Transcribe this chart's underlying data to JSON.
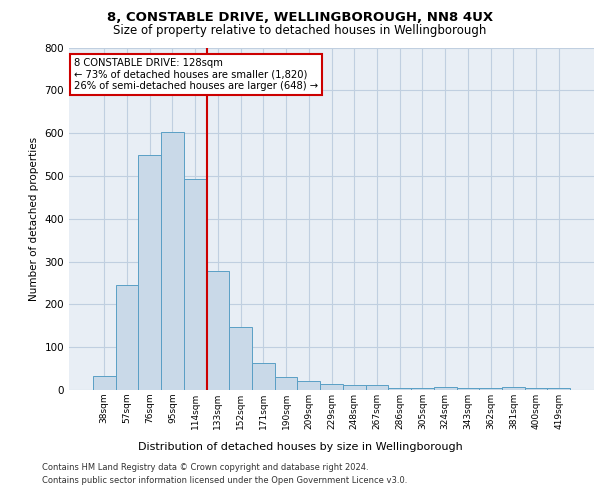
{
  "title1": "8, CONSTABLE DRIVE, WELLINGBOROUGH, NN8 4UX",
  "title2": "Size of property relative to detached houses in Wellingborough",
  "xlabel": "Distribution of detached houses by size in Wellingborough",
  "ylabel": "Number of detached properties",
  "bar_labels": [
    "38sqm",
    "57sqm",
    "76sqm",
    "95sqm",
    "114sqm",
    "133sqm",
    "152sqm",
    "171sqm",
    "190sqm",
    "209sqm",
    "229sqm",
    "248sqm",
    "267sqm",
    "286sqm",
    "305sqm",
    "324sqm",
    "343sqm",
    "362sqm",
    "381sqm",
    "400sqm",
    "419sqm"
  ],
  "bar_values": [
    32,
    245,
    548,
    603,
    493,
    278,
    146,
    62,
    30,
    20,
    15,
    12,
    12,
    5,
    5,
    8,
    5,
    5,
    8,
    5,
    5
  ],
  "bar_color": "#c9d9e8",
  "bar_edge_color": "#5a9fc5",
  "grid_color": "#c0cfe0",
  "background_color": "#e8eef5",
  "red_line_x": 4.5,
  "annotation_text": "8 CONSTABLE DRIVE: 128sqm\n← 73% of detached houses are smaller (1,820)\n26% of semi-detached houses are larger (648) →",
  "annotation_box_color": "#ffffff",
  "annotation_border_color": "#cc0000",
  "ylim": [
    0,
    800
  ],
  "yticks": [
    0,
    100,
    200,
    300,
    400,
    500,
    600,
    700,
    800
  ],
  "footer1": "Contains HM Land Registry data © Crown copyright and database right 2024.",
  "footer2": "Contains public sector information licensed under the Open Government Licence v3.0."
}
